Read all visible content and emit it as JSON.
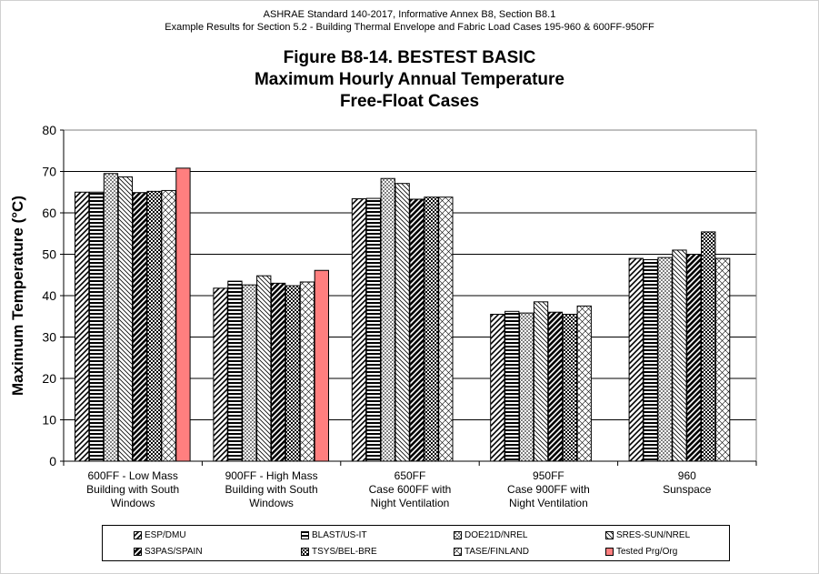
{
  "header": {
    "line1": "ASHRAE Standard 140-2017, Informative Annex B8, Section B8.1",
    "line2": "Example Results for Section 5.2 - Building Thermal Envelope and Fabric Load Cases 195-960 & 600FF-950FF"
  },
  "title": {
    "line1": "Figure B8-14.  BESTEST BASIC",
    "line2": "Maximum Hourly Annual Temperature",
    "line3": "Free-Float Cases"
  },
  "chart_data": {
    "type": "bar",
    "ylabel": "Maximum Temperature (°C)",
    "ylim": [
      0,
      80
    ],
    "yticks": [
      0,
      10,
      20,
      30,
      40,
      50,
      60,
      70,
      80
    ],
    "grid": true,
    "legend_position": "bottom",
    "categories": [
      [
        "600FF - Low Mass",
        "Building with South",
        "Windows"
      ],
      [
        "900FF - High Mass",
        "Building with South",
        "Windows"
      ],
      [
        "650FF",
        "Case 600FF with",
        "Night Ventilation"
      ],
      [
        "950FF",
        "Case 900FF with",
        "Night Ventilation"
      ],
      [
        "960",
        "Sunspace"
      ]
    ],
    "series": [
      {
        "name": "ESP/DMU",
        "pattern": "diag-left",
        "values": [
          65.0,
          41.8,
          63.4,
          35.5,
          49.0
        ]
      },
      {
        "name": "BLAST/US-IT",
        "pattern": "horizontal",
        "values": [
          65.0,
          43.5,
          63.5,
          36.2,
          48.7
        ]
      },
      {
        "name": "DOE21D/NREL",
        "pattern": "cross-fine",
        "values": [
          69.5,
          42.6,
          68.3,
          35.8,
          49.2
        ]
      },
      {
        "name": "SRES-SUN/NREL",
        "pattern": "diag-right-light",
        "values": [
          68.7,
          44.8,
          67.1,
          38.5,
          51.0
        ]
      },
      {
        "name": "S3PAS/SPAIN",
        "pattern": "diag-left-bold",
        "values": [
          64.9,
          43.0,
          63.3,
          36.0,
          50.0
        ]
      },
      {
        "name": "TSYS/BEL-BRE",
        "pattern": "checker",
        "values": [
          65.2,
          42.4,
          63.8,
          35.5,
          55.4
        ]
      },
      {
        "name": "TASE/FINLAND",
        "pattern": "lattice",
        "values": [
          65.4,
          43.3,
          63.8,
          37.5,
          49.0
        ]
      },
      {
        "name": "Tested Prg/Org",
        "pattern": "solid",
        "color": "#ff7f7f",
        "values": [
          70.8,
          46.1,
          null,
          null,
          null
        ]
      }
    ]
  }
}
